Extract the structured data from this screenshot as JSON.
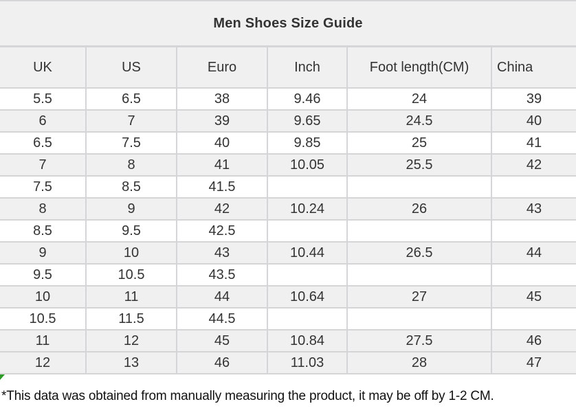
{
  "chart_data": {
    "type": "table",
    "title": "Men Shoes Size Guide",
    "columns": [
      {
        "key": "uk",
        "label": "UK"
      },
      {
        "key": "us",
        "label": "US"
      },
      {
        "key": "euro",
        "label": "Euro"
      },
      {
        "key": "inch",
        "label": "Inch"
      },
      {
        "key": "foot_length_cm",
        "label": "Foot length(CM)"
      },
      {
        "key": "china",
        "label": "China"
      }
    ],
    "rows": [
      [
        "5.5",
        "6.5",
        "38",
        "9.46",
        "24",
        "39"
      ],
      [
        "6",
        "7",
        "39",
        "9.65",
        "24.5",
        "40"
      ],
      [
        "6.5",
        "7.5",
        "40",
        "9.85",
        "25",
        "41"
      ],
      [
        "7",
        "8",
        "41",
        "10.05",
        "25.5",
        "42"
      ],
      [
        "7.5",
        "8.5",
        "41.5",
        "",
        "",
        ""
      ],
      [
        "8",
        "9",
        "42",
        "10.24",
        "26",
        "43"
      ],
      [
        "8.5",
        "9.5",
        "42.5",
        "",
        "",
        ""
      ],
      [
        "9",
        "10",
        "43",
        "10.44",
        "26.5",
        "44"
      ],
      [
        "9.5",
        "10.5",
        "43.5",
        "",
        "",
        ""
      ],
      [
        "10",
        "11",
        "44",
        "10.64",
        "27",
        "45"
      ],
      [
        "10.5",
        "11.5",
        "44.5",
        "",
        "",
        ""
      ],
      [
        "11",
        "12",
        "45",
        "10.84",
        "27.5",
        "46"
      ],
      [
        "12",
        "13",
        "46",
        "11.03",
        "28",
        "47"
      ]
    ],
    "shaded_row_indexes": [
      1,
      3,
      5,
      7,
      9,
      11,
      12
    ],
    "footnote": "*This data was obtained from manually measuring the product, it may be off by 1-2 CM."
  },
  "colors": {
    "band_background": "#f0f0f1",
    "border": "#d5d5d8",
    "text": "#333333",
    "footnote_text": "#111111",
    "corner_mark": "#2e9b27"
  }
}
